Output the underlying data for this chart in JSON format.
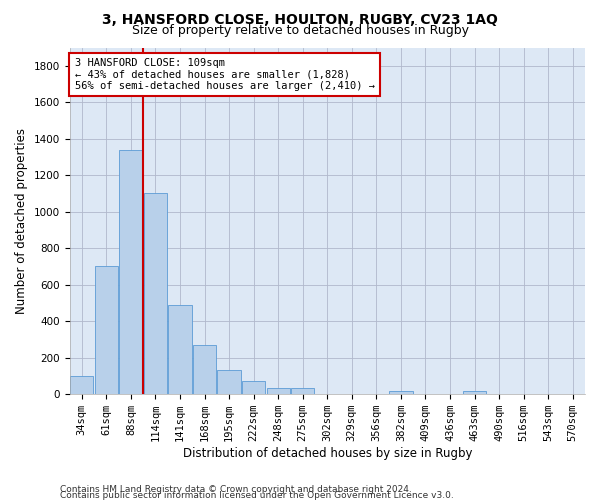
{
  "title": "3, HANSFORD CLOSE, HOULTON, RUGBY, CV23 1AQ",
  "subtitle": "Size of property relative to detached houses in Rugby",
  "xlabel": "Distribution of detached houses by size in Rugby",
  "ylabel": "Number of detached properties",
  "categories": [
    "34sqm",
    "61sqm",
    "88sqm",
    "114sqm",
    "141sqm",
    "168sqm",
    "195sqm",
    "222sqm",
    "248sqm",
    "275sqm",
    "302sqm",
    "329sqm",
    "356sqm",
    "382sqm",
    "409sqm",
    "436sqm",
    "463sqm",
    "490sqm",
    "516sqm",
    "543sqm",
    "570sqm"
  ],
  "values": [
    100,
    700,
    1340,
    1100,
    490,
    270,
    135,
    70,
    35,
    35,
    0,
    0,
    0,
    15,
    0,
    0,
    20,
    0,
    0,
    0,
    0
  ],
  "bar_color": "#b8d0ea",
  "bar_edge_color": "#5b9bd5",
  "vline_color": "#cc0000",
  "vline_x_index": 2.5,
  "annotation_line1": "3 HANSFORD CLOSE: 109sqm",
  "annotation_line2": "← 43% of detached houses are smaller (1,828)",
  "annotation_line3": "56% of semi-detached houses are larger (2,410) →",
  "annotation_box_color": "#ffffff",
  "annotation_box_edge": "#cc0000",
  "ylim": [
    0,
    1900
  ],
  "yticks": [
    0,
    200,
    400,
    600,
    800,
    1000,
    1200,
    1400,
    1600,
    1800
  ],
  "footer_line1": "Contains HM Land Registry data © Crown copyright and database right 2024.",
  "footer_line2": "Contains public sector information licensed under the Open Government Licence v3.0.",
  "bg_color": "#ffffff",
  "plot_bg_color": "#dde8f5",
  "grid_color": "#b0b8cc",
  "title_fontsize": 10,
  "subtitle_fontsize": 9,
  "axis_label_fontsize": 8.5,
  "tick_fontsize": 7.5,
  "footer_fontsize": 6.5
}
